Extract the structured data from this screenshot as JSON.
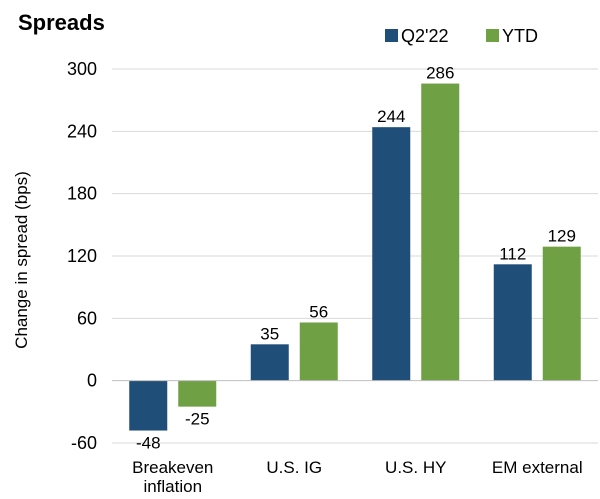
{
  "chart_data": {
    "type": "bar",
    "title": "Spreads",
    "ylabel": "Change in spread (bps)",
    "xlabel": "",
    "categories": [
      [
        "Breakeven",
        "inflation"
      ],
      [
        "U.S. IG"
      ],
      [
        "U.S. HY"
      ],
      [
        "EM external"
      ]
    ],
    "series": [
      {
        "name": "Q2'22",
        "color": "#1f4e79",
        "values": [
          -48,
          35,
          244,
          112
        ],
        "labels": [
          "-48",
          "35",
          "244",
          "112"
        ]
      },
      {
        "name": "YTD",
        "color": "#70a044",
        "values": [
          -25,
          56,
          286,
          129
        ],
        "labels": [
          "-25",
          "56",
          "286",
          "129"
        ]
      }
    ],
    "ylim": [
      -60,
      300
    ],
    "yticks": [
      "300",
      "240",
      "180",
      "120",
      "60",
      "0",
      "-60"
    ],
    "grid": true,
    "legend": "top-right"
  }
}
